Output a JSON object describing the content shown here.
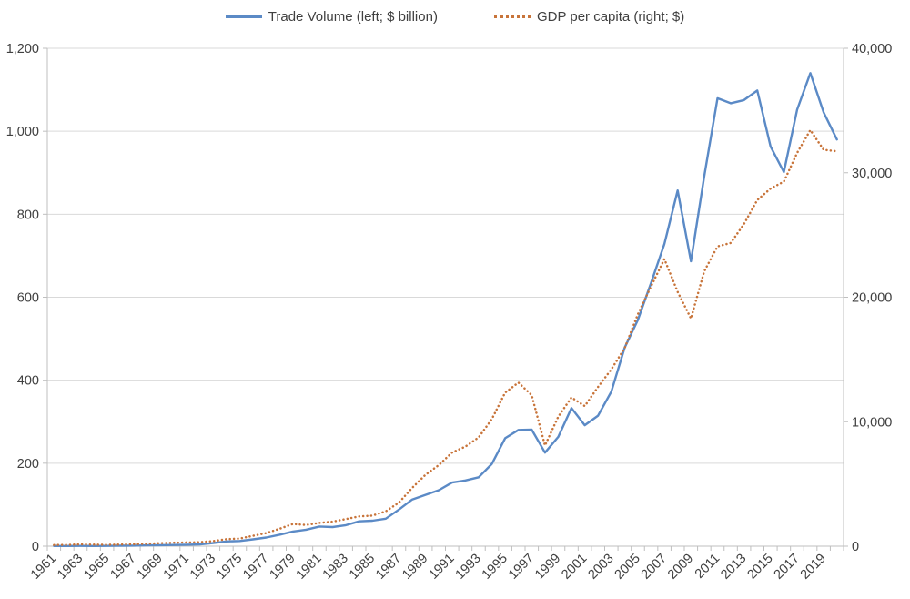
{
  "page": {
    "background": "#ffffff"
  },
  "chart_data": {
    "type": "line",
    "title": "",
    "grid": "horizontal",
    "legend_position": "top",
    "colors": {
      "grid": "#D9D9D9",
      "axis": "#BFBFBF",
      "text": "#404040"
    },
    "x_years": [
      1961,
      1962,
      1963,
      1964,
      1965,
      1966,
      1967,
      1968,
      1969,
      1970,
      1971,
      1972,
      1973,
      1974,
      1975,
      1976,
      1977,
      1978,
      1979,
      1980,
      1981,
      1982,
      1983,
      1984,
      1985,
      1986,
      1987,
      1988,
      1989,
      1990,
      1991,
      1992,
      1993,
      1994,
      1995,
      1996,
      1997,
      1998,
      1999,
      2000,
      2001,
      2002,
      2003,
      2004,
      2005,
      2006,
      2007,
      2008,
      2009,
      2010,
      2011,
      2012,
      2013,
      2014,
      2015,
      2016,
      2017,
      2018,
      2019,
      2020
    ],
    "series": [
      {
        "name": "Trade Volume (left; $ billion)",
        "axis": "left",
        "color": "#5B8AC6",
        "style": "solid",
        "values": [
          0.4,
          0.5,
          0.6,
          0.5,
          0.6,
          1.0,
          1.3,
          1.9,
          2.4,
          2.8,
          3.5,
          4.1,
          7.5,
          11.3,
          12.4,
          16.5,
          20.9,
          27.7,
          35.4,
          39.8,
          47.4,
          46.1,
          50.6,
          59.9,
          61.4,
          66.3,
          88.3,
          112.5,
          123.8,
          134.9,
          153.4,
          158.4,
          166.0,
          198.4,
          260.2,
          280.1,
          280.8,
          225.6,
          263.4,
          332.7,
          291.5,
          314.6,
          372.6,
          478.3,
          545.7,
          634.8,
          728.3,
          857.3,
          686.6,
          891.6,
          1079.6,
          1067.5,
          1075.2,
          1098.2,
          963.3,
          901.6,
          1052.2,
          1140.1,
          1045.6,
          980.1
        ]
      },
      {
        "name": "GDP per capita (right; $)",
        "axis": "right",
        "color": "#C8743A",
        "style": "dotted",
        "values": [
          94,
          106,
          146,
          124,
          109,
          133,
          161,
          198,
          243,
          279,
          301,
          323,
          406,
          563,
          615,
          834,
          1051,
          1399,
          1784,
          1704,
          1870,
          1978,
          2180,
          2391,
          2457,
          2803,
          3511,
          4686,
          5737,
          6516,
          7523,
          8002,
          8741,
          10206,
          12333,
          13138,
          12132,
          8085,
          10409,
          11948,
          11253,
          12790,
          14209,
          15908,
          18640,
          20888,
          23061,
          20431,
          18292,
          22087,
          24080,
          24359,
          25890,
          27811,
          28732,
          29289,
          31601,
          33423,
          31846,
          31728
        ]
      }
    ],
    "left_axis": {
      "min": 0,
      "max": 1200,
      "tick_step": 200,
      "tick_labels": [
        "0",
        "200",
        "400",
        "600",
        "800",
        "1,000",
        "1,200"
      ]
    },
    "right_axis": {
      "min": 0,
      "max": 40000,
      "tick_step": 10000,
      "tick_labels": [
        "0",
        "10,000",
        "20,000",
        "30,000",
        "40,000"
      ]
    },
    "x_axis": {
      "label_rotation": -45,
      "tick_labels": [
        "1961",
        "1963",
        "1965",
        "1967",
        "1969",
        "1971",
        "1973",
        "1975",
        "1977",
        "1979",
        "1981",
        "1983",
        "1985",
        "1987",
        "1989",
        "1991",
        "1993",
        "1995",
        "1997",
        "1999",
        "2001",
        "2003",
        "2005",
        "2007",
        "2009",
        "2011",
        "2013",
        "2015",
        "2017",
        "2019"
      ]
    }
  }
}
